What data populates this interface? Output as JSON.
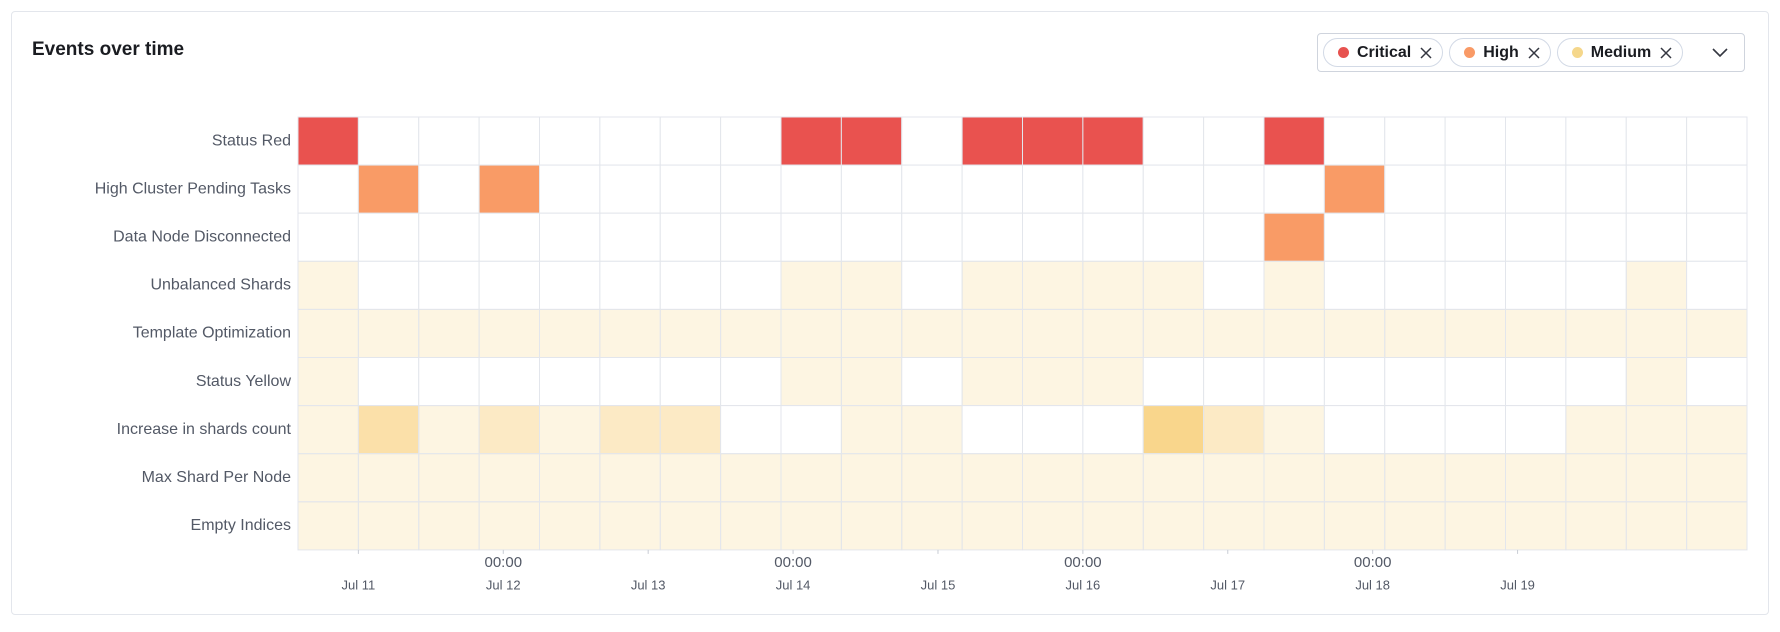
{
  "chart_data": {
    "type": "heatmap",
    "title": "Events over time",
    "legend": [
      {
        "name": "Critical",
        "color": "#e7524f"
      },
      {
        "name": "High",
        "color": "#f99a66"
      },
      {
        "name": "Medium",
        "color": "#f5d78b"
      }
    ],
    "xlim": [
      0,
      240
    ],
    "x": [
      0,
      10,
      20,
      30,
      40,
      50,
      60,
      70,
      80,
      90,
      100,
      110,
      120,
      130,
      140,
      150,
      160,
      170,
      180,
      190,
      200,
      210,
      220,
      230
    ],
    "xticks": [
      {
        "value": 10,
        "label": "Jul 11"
      },
      {
        "value": 34,
        "label": "Jul 12"
      },
      {
        "value": 58,
        "label": "Jul 13"
      },
      {
        "value": 82,
        "label": "Jul 14"
      },
      {
        "value": 106,
        "label": "Jul 15"
      },
      {
        "value": 130,
        "label": "Jul 16"
      },
      {
        "value": 154,
        "label": "Jul 17"
      },
      {
        "value": 178,
        "label": "Jul 18"
      },
      {
        "value": 202,
        "label": "Jul 19"
      }
    ],
    "xtick_time_labels": [
      {
        "value": 34,
        "label": "00:00"
      },
      {
        "value": 82,
        "label": "00:00"
      },
      {
        "value": 130,
        "label": "00:00"
      },
      {
        "value": 178,
        "label": "00:00"
      }
    ],
    "series": [
      {
        "name": "Status Red",
        "color": "#e9524f",
        "values": [
          1,
          0,
          0,
          0,
          0,
          0,
          0,
          0,
          1,
          1,
          0,
          1,
          1,
          1,
          0,
          0,
          1,
          0,
          0,
          0,
          0,
          0,
          0,
          0
        ]
      },
      {
        "name": "High Cluster Pending Tasks",
        "color": "#f99b66",
        "values": [
          0,
          1,
          0,
          1,
          0,
          0,
          0,
          0,
          0,
          0,
          0,
          0,
          0,
          0,
          0,
          0,
          0,
          1,
          0,
          0,
          0,
          0,
          0,
          0
        ]
      },
      {
        "name": "Data Node Disconnected",
        "color": "#f99b66",
        "values": [
          0,
          0,
          0,
          0,
          0,
          0,
          0,
          0,
          0,
          0,
          0,
          0,
          0,
          0,
          0,
          0,
          1,
          0,
          0,
          0,
          0,
          0,
          0,
          0
        ]
      },
      {
        "name": "Unbalanced Shards",
        "color": "#f9d68c",
        "values": [
          1,
          0,
          0,
          0,
          0,
          0,
          0,
          0,
          1,
          1,
          0,
          1,
          1,
          1,
          1,
          0,
          1,
          0,
          0,
          0,
          0,
          0,
          1,
          0
        ]
      },
      {
        "name": "Template Optimization",
        "color": "#f9d68c",
        "values": [
          1,
          1,
          1,
          1,
          1,
          1,
          1,
          1,
          1,
          1,
          1,
          1,
          1,
          1,
          1,
          1,
          1,
          1,
          1,
          1,
          1,
          1,
          1,
          1
        ]
      },
      {
        "name": "Status Yellow",
        "color": "#f9d68c",
        "values": [
          1,
          0,
          0,
          0,
          0,
          0,
          0,
          0,
          1,
          1,
          0,
          1,
          1,
          1,
          0,
          0,
          0,
          0,
          0,
          0,
          0,
          0,
          1,
          0
        ]
      },
      {
        "name": "Increase in shards count",
        "color": "#f9d68c",
        "values": [
          1,
          3,
          1,
          2,
          1,
          2,
          2,
          0,
          0,
          1,
          1,
          0,
          0,
          0,
          4,
          2,
          1,
          0,
          0,
          0,
          0,
          1,
          1,
          1
        ]
      },
      {
        "name": "Max Shard Per Node",
        "color": "#f9d68c",
        "values": [
          1,
          1,
          1,
          1,
          1,
          1,
          1,
          1,
          1,
          1,
          1,
          1,
          1,
          1,
          1,
          1,
          1,
          1,
          1,
          1,
          1,
          1,
          1,
          1
        ]
      },
      {
        "name": "Empty Indices",
        "color": "#f9d68c",
        "values": [
          1,
          1,
          1,
          1,
          1,
          1,
          1,
          1,
          1,
          1,
          1,
          1,
          1,
          1,
          1,
          1,
          1,
          1,
          1,
          1,
          1,
          1,
          1,
          1
        ]
      }
    ]
  }
}
